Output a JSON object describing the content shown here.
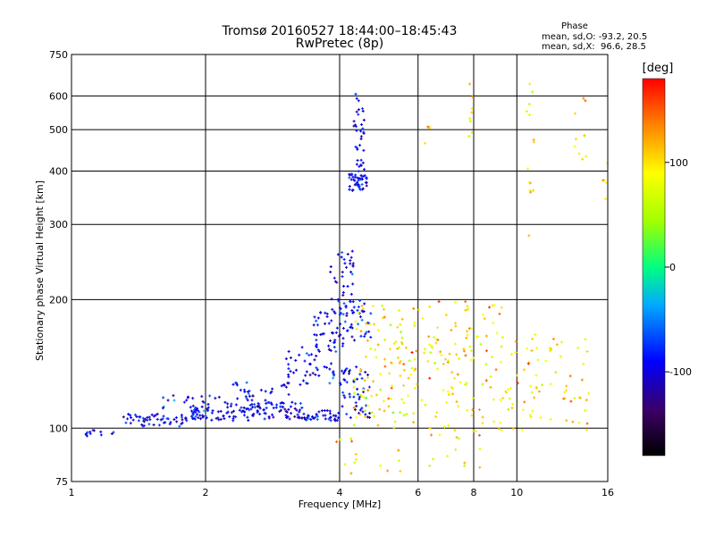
{
  "chart_data": {
    "type": "scatter",
    "title": "Tromsø 20160527 18:44:00–18:45:43",
    "subtitle": "RwPretec (8p)",
    "xlabel": "Frequency [MHz]",
    "ylabel": "Stationary phase Virtual Height [km]",
    "x_scale": "log",
    "y_scale": "log",
    "xlim": [
      1,
      16
    ],
    "ylim": [
      75,
      750
    ],
    "x_ticks": [
      1,
      2,
      4,
      6,
      8,
      10,
      16
    ],
    "x_tick_labels": [
      "1",
      "2",
      "4",
      "6",
      "8",
      "10",
      "16"
    ],
    "y_ticks": [
      75,
      100,
      200,
      300,
      400,
      500,
      600,
      750
    ],
    "y_tick_labels": [
      "75",
      "100",
      "200",
      "300",
      "400",
      "500",
      "600",
      "750"
    ],
    "grid": true,
    "phase_stats": {
      "heading": "Phase",
      "o_line": "mean, sd,O: -93.2, 20.5",
      "x_line": "mean, sd,X:  96.6, 28.5"
    },
    "colorbar": {
      "label": "[deg]",
      "range": [
        -180,
        180
      ],
      "ticks": [
        -100,
        0,
        100
      ],
      "tick_labels": [
        "-100",
        "0",
        "100"
      ]
    },
    "series": [
      {
        "mode": "o",
        "phase_mean": -93.2,
        "phase_sd": 20.5,
        "segments": [
          {
            "f": [
              1.0,
              1.25
            ],
            "h": [
              94,
              99
            ],
            "n": 12
          },
          {
            "f": [
              1.3,
              1.8
            ],
            "h": [
              101,
              108
            ],
            "n": 50
          },
          {
            "f": [
              1.8,
              2.5
            ],
            "h": [
              104,
              112
            ],
            "n": 70
          },
          {
            "f": [
              2.5,
              3.3
            ],
            "h": [
              105,
              115
            ],
            "n": 70
          },
          {
            "f": [
              3.3,
              4.0
            ],
            "h": [
              104,
              110
            ],
            "n": 40
          },
          {
            "f": [
              1.6,
              2.3
            ],
            "h": [
              110,
              120
            ],
            "n": 25
          },
          {
            "f": [
              2.3,
              3.1
            ],
            "h": [
              112,
              128
            ],
            "n": 35
          },
          {
            "f": [
              3.0,
              3.9
            ],
            "h": [
              125,
              155
            ],
            "n": 45
          },
          {
            "f": [
              3.5,
              4.1
            ],
            "h": [
              150,
              190
            ],
            "n": 45
          },
          {
            "f": [
              3.8,
              4.3
            ],
            "h": [
              185,
              260
            ],
            "n": 40
          },
          {
            "f": [
              4.0,
              4.7
            ],
            "h": [
              160,
              200
            ],
            "n": 40
          },
          {
            "f": [
              4.0,
              4.7
            ],
            "h": [
              105,
              140
            ],
            "n": 50
          },
          {
            "f": [
              4.2,
              4.6
            ],
            "h": [
              360,
              395
            ],
            "n": 45
          },
          {
            "f": [
              4.3,
              4.55
            ],
            "h": [
              395,
              610
            ],
            "n": 35
          }
        ]
      },
      {
        "mode": "x",
        "phase_mean": 96.6,
        "phase_sd": 28.5,
        "segments": [
          {
            "f": [
              4.3,
              6.0
            ],
            "h": [
              100,
              195
            ],
            "n": 110
          },
          {
            "f": [
              6.0,
              9.5
            ],
            "h": [
              95,
              200
            ],
            "n": 120
          },
          {
            "f": [
              9.5,
              14.5
            ],
            "h": [
              98,
              170
            ],
            "n": 70
          },
          {
            "f": [
              3.9,
              5.5
            ],
            "h": [
              78,
              95
            ],
            "n": 14
          },
          {
            "f": [
              6.3,
              9.0
            ],
            "h": [
              80,
              98
            ],
            "n": 10
          },
          {
            "f": [
              7.8,
              8.0
            ],
            "h": [
              480,
              660
            ],
            "n": 8
          },
          {
            "f": [
              10.5,
              11.0
            ],
            "h": [
              270,
              650
            ],
            "n": 14
          },
          {
            "f": [
              13.5,
              14.5
            ],
            "h": [
              420,
              600
            ],
            "n": 10
          },
          {
            "f": [
              15.5,
              16.0
            ],
            "h": [
              320,
              420
            ],
            "n": 5
          },
          {
            "f": [
              6.2,
              6.4
            ],
            "h": [
              460,
              510
            ],
            "n": 4
          }
        ]
      }
    ]
  }
}
